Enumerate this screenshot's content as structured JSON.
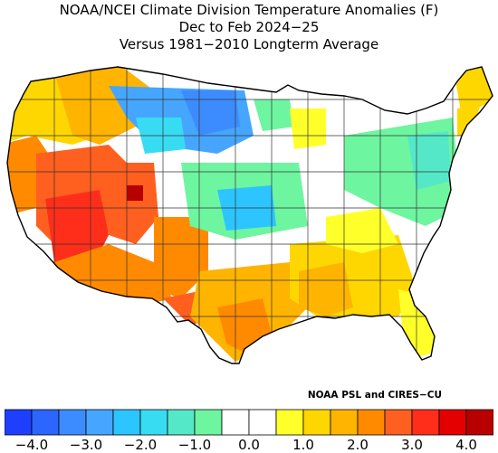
{
  "title": {
    "line1": "NOAA/NCEI Climate Division Temperature Anomalies (F)",
    "line2": "Dec to Feb 2024−25",
    "line3": "Versus 1981−2010 Longterm Average"
  },
  "credit": "NOAA PSL and CIRES−CU",
  "legend": {
    "colors": [
      "#1f3fff",
      "#2a66ff",
      "#3c8cff",
      "#46a6ff",
      "#2cc5ff",
      "#38dcf2",
      "#54e8c8",
      "#6ef5a0",
      "#ffffff",
      "#ffffff",
      "#ffff2a",
      "#ffd700",
      "#ffb400",
      "#ff8a00",
      "#ff5f1f",
      "#ff2e1a",
      "#e40000",
      "#b80000"
    ],
    "tick_labels": [
      "−4.0",
      "−3.0",
      "−2.0",
      "−1.0",
      "0.0",
      "1.0",
      "2.0",
      "3.0",
      "4.0"
    ],
    "range": [
      -4.0,
      4.0
    ]
  },
  "map": {
    "outline_color": "#000000",
    "division_color": "#333333"
  }
}
